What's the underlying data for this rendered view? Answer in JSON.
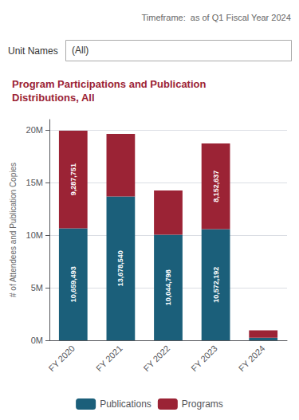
{
  "chart_data": {
    "type": "bar",
    "title": "Program Participations and Publication\nDistributions, All",
    "annotations": [
      "Timeframe:  as of Q1 Fiscal Year 2024",
      "Unit Names",
      "(All)"
    ],
    "ylabel": "# of Attendees and Publication Copies",
    "categories": [
      "FY 2020",
      "FY 2021",
      "FY 2022",
      "FY 2023",
      "FY 2024"
    ],
    "series": [
      {
        "name": "Publications",
        "color": "#1b5f7a",
        "values": [
          10659493,
          13678540,
          10044798,
          10572192,
          250000
        ],
        "value_labels": [
          "10,659,493",
          "13,678,540",
          "10,044,798",
          "10,572,192",
          null
        ]
      },
      {
        "name": "Programs",
        "color": "#9b2335",
        "values": [
          9287751,
          5950000,
          4200000,
          8152637,
          700000
        ],
        "value_labels": [
          "9,287,751",
          null,
          null,
          "8,152,637",
          null
        ]
      }
    ],
    "stacked": true,
    "data_labels": true,
    "ylim": [
      0,
      21000000
    ],
    "yticks": [
      {
        "value": 0,
        "label": "0M"
      },
      {
        "value": 5000000,
        "label": "5M"
      },
      {
        "value": 10000000,
        "label": "10M"
      },
      {
        "value": 15000000,
        "label": "15M"
      },
      {
        "value": 20000000,
        "label": "20M"
      }
    ],
    "grid": true,
    "legend": "bottom",
    "title_color": "#9b2335"
  }
}
